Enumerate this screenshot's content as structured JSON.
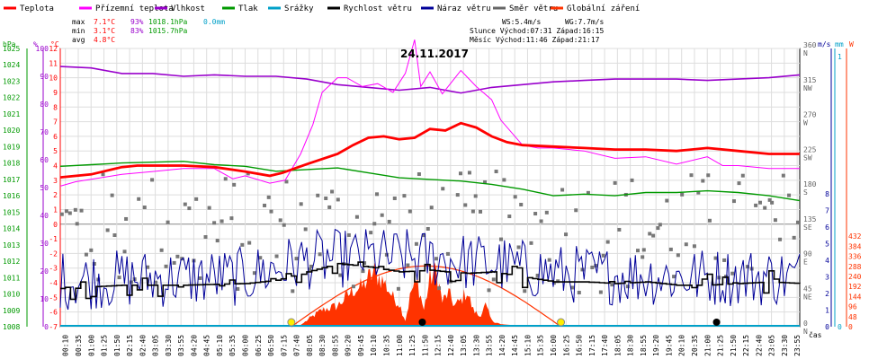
{
  "chart_data": {
    "type": "line",
    "title": "24.11.2017",
    "x_label": "čas",
    "legend": [
      {
        "label": "Teplota",
        "color": "#ff0000"
      },
      {
        "label": "Přízemní teplota",
        "color": "#ff00ff"
      },
      {
        "label": "Vlhkost",
        "color": "#9900cc"
      },
      {
        "label": "Tlak",
        "color": "#009900"
      },
      {
        "label": "Srážky",
        "color": "#00a0c8"
      },
      {
        "label": "Rychlost větru",
        "color": "#000000"
      },
      {
        "label": "Náraz větru",
        "color": "#000099"
      },
      {
        "label": "Směr větru",
        "color": "#666666"
      },
      {
        "label": "Globální záření",
        "color": "#ff3300"
      }
    ],
    "stats": {
      "labels": [
        "max",
        "min",
        "avg"
      ],
      "temp": [
        "7.1°C",
        "3.1°C",
        "4.8°C"
      ],
      "hum": [
        "93%",
        "83%",
        ""
      ],
      "press": [
        "1018.1hPa",
        "1015.7hPa",
        ""
      ],
      "rain": [
        "0.0mm",
        "",
        ""
      ],
      "ws": "WS:5.4m/s",
      "wg": "WG:7.7m/s",
      "sun": "Slunce Východ:07:31  Západ:16:15",
      "moon": "Měsíc  Východ:11:46  Západ:21:17"
    },
    "axes": {
      "hpa_label": "hPa",
      "pct_label": "%",
      "c_label": "°C",
      "ms_label": "m/s",
      "mm_label": "mm",
      "w_label": "W",
      "hpa_ticks": [
        "1008",
        "1009",
        "1010",
        "1011",
        "1012",
        "1013",
        "1014",
        "1015",
        "1016",
        "1017",
        "1018",
        "1019",
        "1020",
        "1021",
        "1022",
        "1023",
        "1024",
        "1025"
      ],
      "pct_ticks": [
        "0",
        "10",
        "20",
        "30",
        "40",
        "50",
        "60",
        "70",
        "80",
        "90",
        "100"
      ],
      "c_ticks": [
        "-7",
        "-6",
        "-5",
        "-4",
        "-3",
        "-2",
        "-1",
        "0",
        "1",
        "2",
        "3",
        "4",
        "5",
        "6",
        "7",
        "8",
        "9",
        "10",
        "11",
        "12"
      ],
      "c_display_ticks": [
        "-7",
        "-6",
        "-5",
        "-4",
        "-3",
        "-2",
        "-1",
        "0",
        "1",
        "2",
        "3",
        "4",
        "5",
        "6",
        "7",
        "8",
        "9",
        "10",
        "11",
        "12"
      ],
      "dir_ticks": [
        {
          "value": "0",
          "label": "N"
        },
        {
          "value": "45",
          "label": "NE"
        },
        {
          "value": "90",
          "label": "E"
        },
        {
          "value": "135",
          "label": "SE"
        },
        {
          "value": "180",
          "label": "S"
        },
        {
          "value": "225",
          "label": "SW"
        },
        {
          "value": "270",
          "label": "W"
        },
        {
          "value": "315",
          "label": "NW"
        },
        {
          "value": "360",
          "label": "N"
        }
      ],
      "ms_ticks": [
        "0",
        "1",
        "2",
        "3",
        "4",
        "5",
        "6",
        "7",
        "8"
      ],
      "mm_ticks": [
        "0",
        "1"
      ],
      "w_ticks": [
        "0",
        "48",
        "96",
        "144",
        "192",
        "240",
        "288",
        "336",
        "384",
        "432"
      ],
      "time_ticks": [
        "00:10",
        "00:35",
        "01:00",
        "01:25",
        "01:50",
        "02:15",
        "02:40",
        "03:05",
        "03:30",
        "03:55",
        "04:20",
        "04:45",
        "05:10",
        "05:35",
        "06:00",
        "06:25",
        "06:50",
        "07:15",
        "07:40",
        "08:05",
        "08:30",
        "08:55",
        "09:20",
        "09:45",
        "10:10",
        "10:35",
        "11:00",
        "11:25",
        "11:50",
        "12:15",
        "12:40",
        "13:05",
        "13:30",
        "13:55",
        "14:20",
        "14:45",
        "15:10",
        "15:35",
        "16:00",
        "16:25",
        "16:50",
        "17:15",
        "17:40",
        "18:05",
        "18:30",
        "18:55",
        "19:20",
        "19:45",
        "20:10",
        "20:35",
        "21:00",
        "21:25",
        "21:50",
        "22:15",
        "22:40",
        "23:05",
        "23:30",
        "23:55"
      ]
    },
    "temperature": [
      [
        0,
        3.2
      ],
      [
        1,
        3.4
      ],
      [
        2,
        3.9
      ],
      [
        2.5,
        4.0
      ],
      [
        3,
        4.0
      ],
      [
        4,
        4.0
      ],
      [
        5,
        3.9
      ],
      [
        6,
        3.6
      ],
      [
        6.8,
        3.3
      ],
      [
        7.2,
        3.5
      ],
      [
        8,
        4.1
      ],
      [
        9,
        4.8
      ],
      [
        9.5,
        5.4
      ],
      [
        10,
        5.9
      ],
      [
        10.5,
        6.0
      ],
      [
        11,
        5.8
      ],
      [
        11.5,
        5.9
      ],
      [
        12,
        6.5
      ],
      [
        12.5,
        6.4
      ],
      [
        13,
        6.9
      ],
      [
        13.5,
        6.6
      ],
      [
        14,
        6.0
      ],
      [
        14.5,
        5.6
      ],
      [
        15,
        5.4
      ],
      [
        16,
        5.3
      ],
      [
        17,
        5.2
      ],
      [
        18,
        5.1
      ],
      [
        19,
        5.1
      ],
      [
        20,
        5.0
      ],
      [
        21,
        5.2
      ],
      [
        22,
        5.0
      ],
      [
        23,
        4.8
      ],
      [
        24,
        4.8
      ]
    ],
    "ground_temp": [
      [
        0,
        2.6
      ],
      [
        0.5,
        2.9
      ],
      [
        2,
        3.4
      ],
      [
        3,
        3.6
      ],
      [
        4,
        3.8
      ],
      [
        5,
        3.8
      ],
      [
        5.6,
        3.1
      ],
      [
        6,
        3.3
      ],
      [
        6.8,
        2.8
      ],
      [
        7.3,
        3.0
      ],
      [
        7.8,
        4.8
      ],
      [
        8.2,
        6.8
      ],
      [
        8.5,
        9.0
      ],
      [
        9,
        10.0
      ],
      [
        9.3,
        10.0
      ],
      [
        9.8,
        9.4
      ],
      [
        10.3,
        9.6
      ],
      [
        10.8,
        9.0
      ],
      [
        11.2,
        10.3
      ],
      [
        11.5,
        12.6
      ],
      [
        11.7,
        9.4
      ],
      [
        12,
        10.4
      ],
      [
        12.4,
        8.9
      ],
      [
        13,
        10.5
      ],
      [
        13.5,
        9.4
      ],
      [
        14,
        8.5
      ],
      [
        14.3,
        7.1
      ],
      [
        15,
        5.4
      ],
      [
        15.5,
        5.2
      ],
      [
        16,
        5.2
      ],
      [
        17,
        5.0
      ],
      [
        18,
        4.5
      ],
      [
        19,
        4.6
      ],
      [
        20,
        4.1
      ],
      [
        21,
        4.6
      ],
      [
        21.5,
        4.0
      ],
      [
        22,
        4.0
      ],
      [
        23,
        3.8
      ],
      [
        24,
        3.8
      ]
    ],
    "humidity": [
      [
        0,
        93.5
      ],
      [
        1,
        93
      ],
      [
        2,
        91
      ],
      [
        3,
        91
      ],
      [
        4,
        90
      ],
      [
        5,
        90.5
      ],
      [
        6,
        90
      ],
      [
        7,
        90
      ],
      [
        8,
        89
      ],
      [
        9,
        87
      ],
      [
        10,
        86
      ],
      [
        11,
        85
      ],
      [
        12,
        86
      ],
      [
        13,
        84
      ],
      [
        13.5,
        85
      ],
      [
        14,
        86
      ],
      [
        15,
        87
      ],
      [
        16,
        88
      ],
      [
        17,
        88.5
      ],
      [
        18,
        89
      ],
      [
        19,
        89
      ],
      [
        20,
        89
      ],
      [
        21,
        88.5
      ],
      [
        22,
        89
      ],
      [
        23,
        89.5
      ],
      [
        24,
        90.5
      ]
    ],
    "pressure": [
      [
        0,
        1017.8
      ],
      [
        1,
        1017.9
      ],
      [
        2,
        1018.0
      ],
      [
        3,
        1018.05
      ],
      [
        4,
        1018.1
      ],
      [
        5,
        1017.9
      ],
      [
        6,
        1017.8
      ],
      [
        7,
        1017.5
      ],
      [
        8,
        1017.6
      ],
      [
        9,
        1017.7
      ],
      [
        10,
        1017.4
      ],
      [
        11,
        1017.1
      ],
      [
        12,
        1017.0
      ],
      [
        13,
        1016.9
      ],
      [
        14,
        1016.7
      ],
      [
        15,
        1016.4
      ],
      [
        16,
        1016.0
      ],
      [
        17,
        1016.1
      ],
      [
        18,
        1016.0
      ],
      [
        19,
        1016.2
      ],
      [
        20,
        1016.2
      ],
      [
        21,
        1016.3
      ],
      [
        22,
        1016.2
      ],
      [
        23,
        1016.0
      ],
      [
        24,
        1015.7
      ]
    ],
    "wind_speed": [
      [
        0,
        2.3
      ],
      [
        2,
        2.5
      ],
      [
        4,
        2.5
      ],
      [
        6,
        2.6
      ],
      [
        7,
        2.8
      ],
      [
        8,
        3.3
      ],
      [
        9,
        3.8
      ],
      [
        10,
        3.6
      ],
      [
        11,
        3.3
      ],
      [
        12,
        3.4
      ],
      [
        13,
        3.2
      ],
      [
        14,
        3.3
      ],
      [
        15,
        3.0
      ],
      [
        16,
        2.7
      ],
      [
        17,
        2.7
      ],
      [
        18,
        2.6
      ],
      [
        19,
        2.7
      ],
      [
        20,
        2.5
      ],
      [
        21,
        2.5
      ],
      [
        22,
        2.6
      ],
      [
        23,
        2.7
      ],
      [
        24,
        2.6
      ]
    ],
    "wind_gust_mean": [
      [
        0,
        2.8
      ],
      [
        6,
        3.0
      ],
      [
        8,
        4.0
      ],
      [
        10,
        4.2
      ],
      [
        12,
        4.1
      ],
      [
        14,
        3.8
      ],
      [
        16,
        3.2
      ],
      [
        18,
        3.1
      ],
      [
        20,
        3.0
      ],
      [
        22,
        3.0
      ],
      [
        24,
        3.0
      ]
    ],
    "solar": [
      [
        7.5,
        0
      ],
      [
        7.8,
        8
      ],
      [
        8.2,
        50
      ],
      [
        8.5,
        80
      ],
      [
        9,
        100
      ],
      [
        9.5,
        175
      ],
      [
        9.8,
        190
      ],
      [
        10,
        230
      ],
      [
        10.2,
        260
      ],
      [
        10.5,
        215
      ],
      [
        10.8,
        140
      ],
      [
        11,
        110
      ],
      [
        11.2,
        30
      ],
      [
        11.4,
        175
      ],
      [
        11.6,
        210
      ],
      [
        11.8,
        80
      ],
      [
        12,
        230
      ],
      [
        12.2,
        265
      ],
      [
        12.4,
        120
      ],
      [
        12.6,
        160
      ],
      [
        12.8,
        100
      ],
      [
        13,
        125
      ],
      [
        13.2,
        170
      ],
      [
        13.4,
        80
      ],
      [
        13.6,
        50
      ],
      [
        13.8,
        100
      ],
      [
        14,
        30
      ],
      [
        14.3,
        12
      ],
      [
        15,
        4
      ],
      [
        16.1,
        0
      ]
    ],
    "solar_max_curve": [
      [
        7.5,
        0
      ],
      [
        9,
        135
      ],
      [
        10,
        230
      ],
      [
        11,
        280
      ],
      [
        11.75,
        290
      ],
      [
        12.5,
        280
      ],
      [
        13.5,
        230
      ],
      [
        14.5,
        135
      ],
      [
        16.25,
        0
      ]
    ],
    "sun_markers": [
      7.5,
      16.25
    ],
    "moon_markers": [
      11.75,
      21.3
    ]
  }
}
